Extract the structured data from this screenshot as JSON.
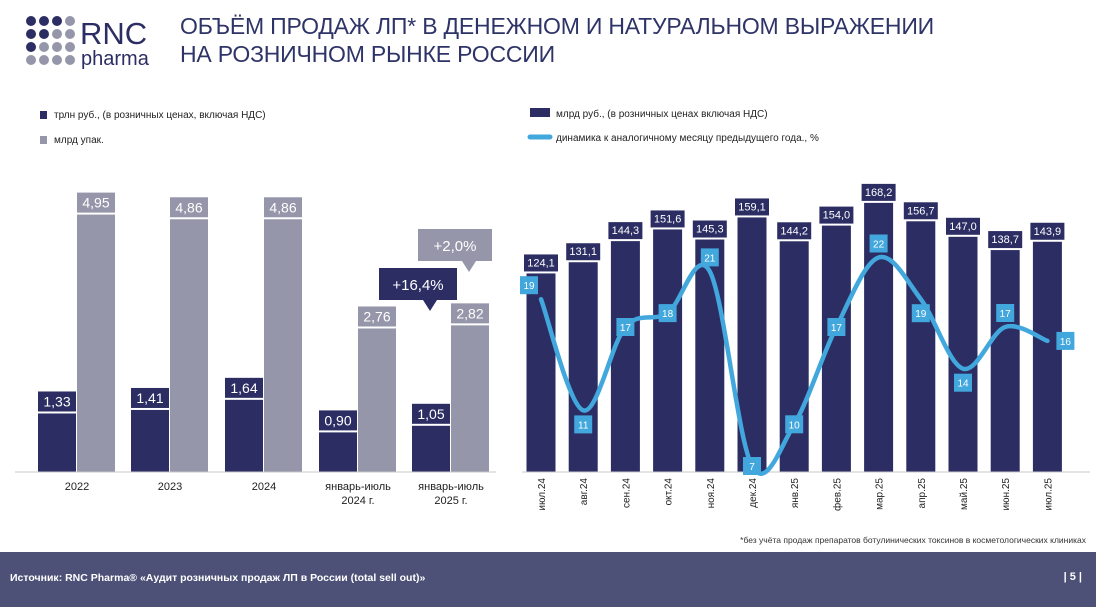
{
  "logo": {
    "brand": "RNC",
    "sub": "pharma"
  },
  "title": {
    "line1": "ОБЪЁМ ПРОДАЖ ЛП* В ДЕНЕЖНОМ И НАТУРАЛЬНОМ ВЫРАЖЕНИИ",
    "line2": "НА РОЗНИЧНОМ РЫНКЕ РОССИИ"
  },
  "colors": {
    "navy": "#2b2d63",
    "gray": "#9596aa",
    "line": "#41a7dd",
    "footer": "#4d5077"
  },
  "chart_data": [
    {
      "type": "bar",
      "categories": [
        "2022",
        "2023",
        "2024",
        "январь-июль 2024 г.",
        "январь-июль 2025 г."
      ],
      "series": [
        {
          "name": "трлн руб., (в розничных ценах, включая НДС)",
          "values": [
            1.33,
            1.41,
            1.64,
            0.9,
            1.05
          ],
          "labels": [
            "1,33",
            "1,41",
            "1,64",
            "0,90",
            "1,05"
          ]
        },
        {
          "name": "млрд упак.",
          "values": [
            4.95,
            4.86,
            4.86,
            2.76,
            2.82
          ],
          "labels": [
            "4,95",
            "4,86",
            "4,86",
            "2,76",
            "2,82"
          ]
        }
      ],
      "annotations": [
        "+16,4%",
        "+2,0%"
      ]
    },
    {
      "type": "bar",
      "categories": [
        "июл.24",
        "авг.24",
        "сен.24",
        "окт.24",
        "ноя.24",
        "дек.24",
        "янв.25",
        "фев.25",
        "мар.25",
        "апр.25",
        "май.25",
        "июн.25",
        "июл.25"
      ],
      "series": [
        {
          "name": "млрд руб., (в розничных ценах включая НДС)",
          "type": "bar",
          "values": [
            124.1,
            131.1,
            144.3,
            151.6,
            145.3,
            159.1,
            144.2,
            154.0,
            168.2,
            156.7,
            147.0,
            138.7,
            143.9
          ],
          "labels": [
            "124,1",
            "131,1",
            "144,3",
            "151,6",
            "145,3",
            "159,1",
            "144,2",
            "154,0",
            "168,2",
            "156,7",
            "147,0",
            "138,7",
            "143,9"
          ]
        },
        {
          "name": "динамика к аналогичному месяцу предыдущего года., %",
          "type": "line",
          "values": [
            19,
            11,
            17,
            18,
            21,
            7,
            10,
            17,
            22,
            19,
            14,
            17,
            16
          ],
          "labels": [
            "19",
            "11",
            "17",
            "18",
            "21",
            "7",
            "10",
            "17",
            "22",
            "19",
            "14",
            "17",
            "16"
          ]
        }
      ]
    }
  ],
  "footnote": "*без учёта продаж препаратов ботулинических токсинов в косметологических клиниках",
  "footer": {
    "source": "Источник: RNC Pharma® «Аудит розничных продаж ЛП в России (total sell out)»",
    "page": "| 5 |"
  }
}
